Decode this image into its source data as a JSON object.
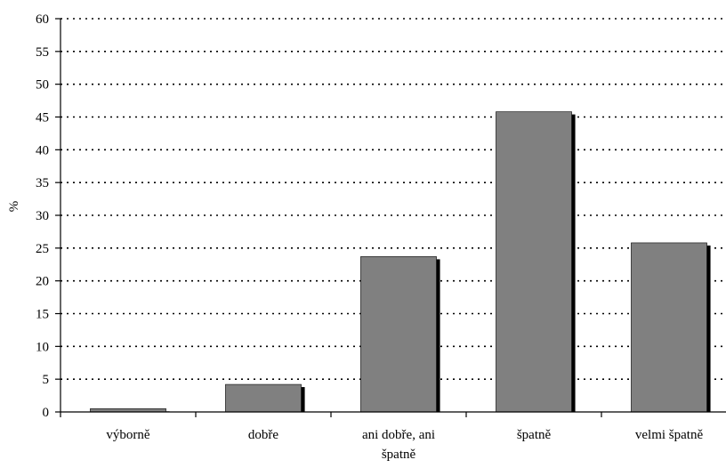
{
  "chart_data": {
    "type": "bar",
    "categories": [
      "výborně",
      "dobře",
      "ani dobře, ani špatně",
      "špatně",
      "velmi špatně"
    ],
    "category_lines": [
      [
        "výborně"
      ],
      [
        "dobře"
      ],
      [
        "ani dobře, ani",
        "špatně"
      ],
      [
        "špatně"
      ],
      [
        "velmi špatně"
      ]
    ],
    "values": [
      0.5,
      4.2,
      23.7,
      45.8,
      25.8
    ],
    "title": "",
    "xlabel": "",
    "ylabel": "%",
    "ylim": [
      0,
      60
    ],
    "yticks": [
      0,
      5,
      10,
      15,
      20,
      25,
      30,
      35,
      40,
      45,
      50,
      55,
      60
    ],
    "grid": true,
    "legend": "none",
    "colors": {
      "bar": "#808080",
      "shadow": "#000000",
      "grid": "#000000",
      "axis": "#000000"
    }
  }
}
